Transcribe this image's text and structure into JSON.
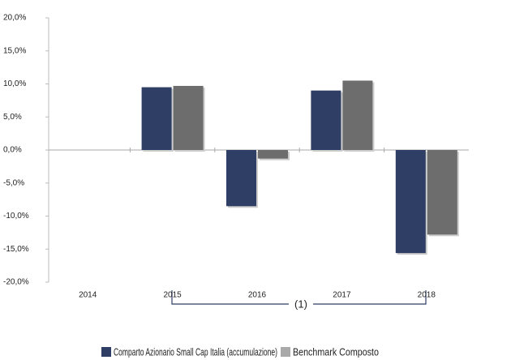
{
  "chart_data": {
    "type": "bar",
    "categories": [
      "2014",
      "2015",
      "2016",
      "2017",
      "2018"
    ],
    "series": [
      {
        "name": "Comparto Azionario Small Cap Italia (accumulazione)",
        "color": "#2e3e64",
        "values": [
          null,
          9.5,
          -8.5,
          9.0,
          -15.6
        ]
      },
      {
        "name": "Benchmark Composto",
        "color": "#6d6d6d",
        "values": [
          null,
          9.7,
          -1.3,
          10.5,
          -12.8
        ]
      }
    ],
    "ylim": [
      -20,
      20
    ],
    "yticks": [
      {
        "value": -20,
        "label": "-20,0%"
      },
      {
        "value": -15,
        "label": "-15,0%"
      },
      {
        "value": -10,
        "label": "-10,0%"
      },
      {
        "value": -5,
        "label": "-5,0%"
      },
      {
        "value": 0,
        "label": "0,0%"
      },
      {
        "value": 5,
        "label": "5,0%"
      },
      {
        "value": 10,
        "label": "10,0%"
      },
      {
        "value": 15,
        "label": "15,0%"
      },
      {
        "value": 20,
        "label": "20,0%"
      }
    ],
    "annotation": "(1)",
    "legend": "bottom"
  }
}
